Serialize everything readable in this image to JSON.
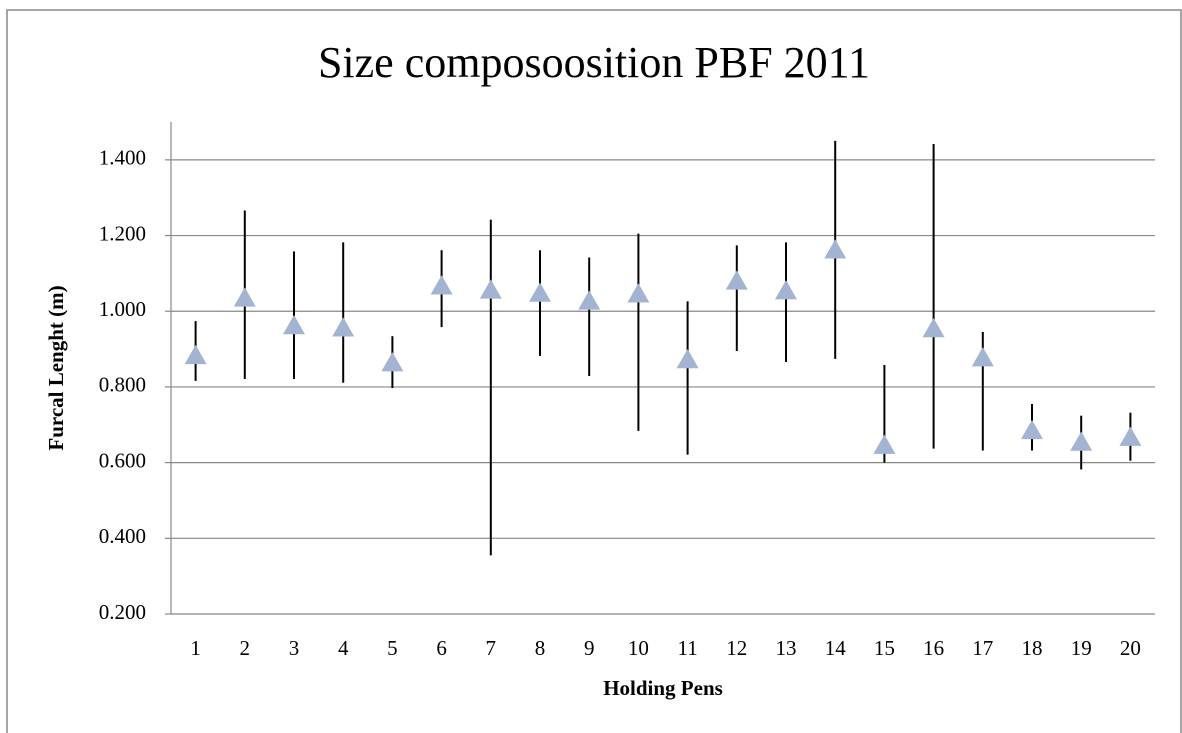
{
  "chart_data": {
    "type": "errorbar-triangle",
    "title": "Size composoosition PBF 2011",
    "x_label": "Holding Pens",
    "y_label": "Furcal Lenght (m)",
    "categories": [
      "1",
      "2",
      "3",
      "4",
      "5",
      "6",
      "7",
      "8",
      "9",
      "10",
      "11",
      "12",
      "13",
      "14",
      "15",
      "16",
      "17",
      "18",
      "19",
      "20"
    ],
    "values": [
      0.882,
      1.034,
      0.961,
      0.955,
      0.863,
      1.066,
      1.055,
      1.047,
      1.026,
      1.045,
      0.871,
      1.079,
      1.053,
      1.161,
      0.645,
      0.953,
      0.876,
      0.684,
      0.653,
      0.666
    ],
    "low": [
      0.816,
      0.821,
      0.821,
      0.811,
      0.797,
      0.958,
      0.355,
      0.882,
      0.829,
      0.684,
      0.621,
      0.895,
      0.866,
      0.874,
      0.6,
      0.637,
      0.632,
      0.632,
      0.582,
      0.605
    ],
    "high": [
      0.974,
      1.266,
      1.158,
      1.182,
      0.934,
      1.161,
      1.242,
      1.161,
      1.142,
      1.205,
      1.026,
      1.174,
      1.182,
      1.45,
      0.858,
      1.442,
      0.945,
      0.755,
      0.724,
      0.732
    ],
    "color": "#a3b4d2",
    "ylim": [
      0.2,
      1.5
    ],
    "yticks": [
      {
        "value": 0.2,
        "label": "0.200"
      },
      {
        "value": 0.4,
        "label": "0.400"
      },
      {
        "value": 0.6,
        "label": "0.600"
      },
      {
        "value": 0.8,
        "label": "0.800"
      },
      {
        "value": 1.0,
        "label": "1.000"
      },
      {
        "value": 1.2,
        "label": "1.200"
      },
      {
        "value": 1.4,
        "label": "1.400"
      }
    ],
    "grid": true
  }
}
